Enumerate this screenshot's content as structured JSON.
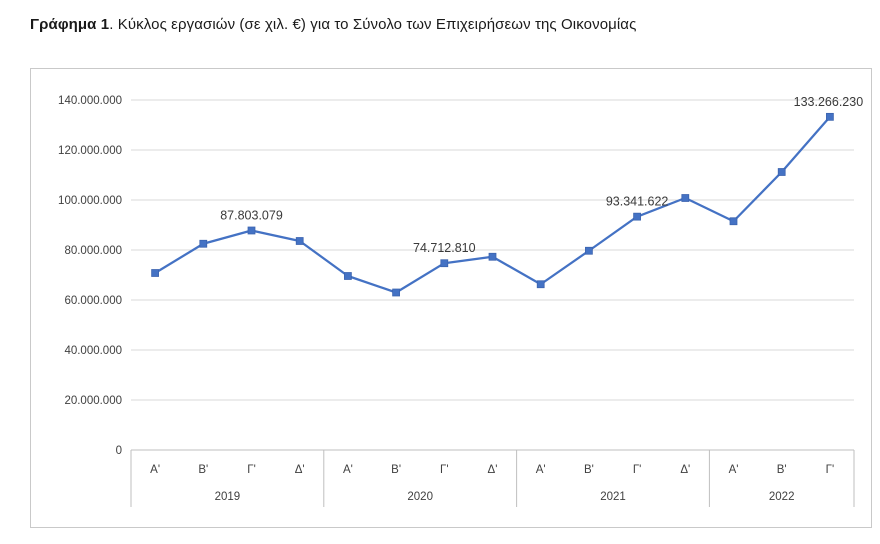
{
  "page": {
    "title_bold": "Γράφημα 1",
    "title_rest": ". Κύκλος εργασιών (σε χιλ. €) για το Σύνολο των Επιχειρήσεων της Οικονομίας"
  },
  "chart_data": {
    "type": "line",
    "title": "Γράφημα 1. Κύκλος εργασιών (σε χιλ. €) για το Σύνολο των Επιχειρήσεων της Οικονομίας",
    "series_name": "Κύκλος εργασιών (σε χιλ. €)",
    "series_color": "#4472C4",
    "grid": true,
    "legend": "none",
    "ylim": [
      0,
      140000000
    ],
    "y_ticks": [
      0,
      20000000,
      40000000,
      60000000,
      80000000,
      100000000,
      120000000,
      140000000
    ],
    "y_tick_labels": [
      "0",
      "20.000.000",
      "40.000.000",
      "60.000.000",
      "80.000.000",
      "100.000.000",
      "120.000.000",
      "140.000.000"
    ],
    "x_quarters": [
      "Α'",
      "Β'",
      "Γ'",
      "Δ'",
      "Α'",
      "Β'",
      "Γ'",
      "Δ'",
      "Α'",
      "Β'",
      "Γ'",
      "Δ'",
      "Α'",
      "Β'",
      "Γ'"
    ],
    "year_groups": [
      {
        "label": "2019",
        "count": 4
      },
      {
        "label": "2020",
        "count": 4
      },
      {
        "label": "2021",
        "count": 4
      },
      {
        "label": "2022",
        "count": 3
      }
    ],
    "values": [
      70800000,
      82500000,
      87803079,
      83600000,
      69600000,
      63000000,
      74712810,
      77300000,
      66300000,
      79700000,
      93341622,
      100800000,
      91500000,
      111200000,
      133266230
    ],
    "data_labels": [
      {
        "index": 2,
        "text": "87.803.079"
      },
      {
        "index": 6,
        "text": "74.712.810"
      },
      {
        "index": 10,
        "text": "93.341.622"
      },
      {
        "index": 14,
        "text": "133.266.230"
      }
    ],
    "colors": {
      "gridline": "#d9d9d9",
      "axis_line": "#bfbfbf",
      "axis_text": "#404040",
      "data_label_text": "#3a3a3a"
    }
  }
}
